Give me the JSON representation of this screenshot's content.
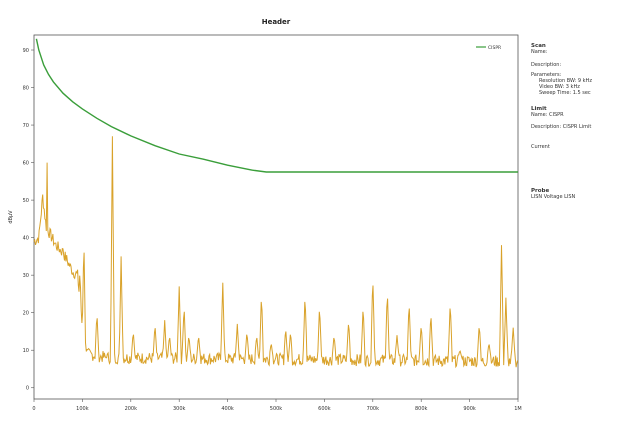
{
  "colors": {
    "limit_line": "#3a9e3a",
    "spectrum_line": "#d9a22a",
    "axis": "#555555",
    "background": "#ffffff"
  },
  "chart_data": {
    "type": "line",
    "title": "Header",
    "xlabel": "",
    "ylabel": "dBµV",
    "x_ticks": [
      0,
      100,
      200,
      300,
      400,
      500,
      600,
      700,
      800,
      900,
      1000
    ],
    "x_tick_labels": [
      "0",
      "100k",
      "200k",
      "300k",
      "400k",
      "500k",
      "600k",
      "700k",
      "800k",
      "900k",
      "1M"
    ],
    "y_ticks": [
      0,
      10,
      20,
      30,
      40,
      50,
      60,
      70,
      80,
      90
    ],
    "y_tick_labels": [
      "0",
      "10",
      "20",
      "30",
      "40",
      "50",
      "60",
      "70",
      "80",
      "90"
    ],
    "xlim": [
      0,
      1000
    ],
    "ylim": [
      -3,
      94
    ],
    "grid": false,
    "legend_position": "top-right",
    "legend": [
      "CISPR"
    ],
    "series": [
      {
        "name": "CISPR",
        "kind": "limit",
        "x": [
          5,
          10,
          20,
          30,
          40,
          60,
          80,
          100,
          130,
          160,
          200,
          250,
          300,
          350,
          400,
          450,
          480,
          500,
          600,
          700,
          800,
          900,
          1000
        ],
        "y": [
          93,
          90,
          86,
          83.5,
          81.5,
          78.5,
          76.2,
          74.3,
          71.8,
          69.6,
          67.1,
          64.5,
          62.3,
          60.9,
          59.3,
          58,
          57.5,
          57.5,
          57.5,
          57.5,
          57.5,
          57.5,
          57.5
        ]
      },
      {
        "kind": "measurement",
        "baseline": [
          [
            0,
            39
          ],
          [
            10,
            40
          ],
          [
            18,
            51
          ],
          [
            25,
            43
          ],
          [
            45,
            38
          ],
          [
            60,
            36
          ],
          [
            80,
            31
          ],
          [
            90,
            30
          ],
          [
            100,
            16
          ],
          [
            110,
            9
          ],
          [
            150,
            8
          ],
          [
            1000,
            7
          ]
        ],
        "peaks": [
          [
            2,
            27
          ],
          [
            8,
            22
          ],
          [
            14,
            31
          ],
          [
            27,
            60
          ],
          [
            40,
            33
          ],
          [
            60,
            37
          ],
          [
            79,
            15
          ],
          [
            95,
            33
          ],
          [
            103,
            40
          ],
          [
            130,
            20
          ],
          [
            150,
            8
          ],
          [
            162,
            67
          ],
          [
            180,
            35
          ],
          [
            205,
            15
          ],
          [
            250,
            17
          ],
          [
            270,
            18
          ],
          [
            280,
            14
          ],
          [
            300,
            27
          ],
          [
            310,
            22
          ],
          [
            320,
            14
          ],
          [
            340,
            14
          ],
          [
            390,
            28
          ],
          [
            420,
            17
          ],
          [
            440,
            15
          ],
          [
            460,
            14
          ],
          [
            470,
            25
          ],
          [
            490,
            12
          ],
          [
            520,
            16
          ],
          [
            530,
            15
          ],
          [
            560,
            25
          ],
          [
            590,
            22
          ],
          [
            620,
            14
          ],
          [
            650,
            18
          ],
          [
            680,
            22
          ],
          [
            700,
            30
          ],
          [
            730,
            26
          ],
          [
            750,
            14
          ],
          [
            775,
            23
          ],
          [
            800,
            17
          ],
          [
            820,
            20
          ],
          [
            860,
            23
          ],
          [
            880,
            10
          ],
          [
            920,
            17
          ],
          [
            940,
            12
          ],
          [
            966,
            38
          ],
          [
            975,
            24
          ],
          [
            990,
            16
          ]
        ]
      }
    ]
  },
  "side_panel": {
    "sections": [
      {
        "heading": "Scan",
        "lines": [
          "Name:",
          "Description:",
          "Parameters:"
        ],
        "params": [
          "Resolution BW: 9 kHz",
          "Video BW: 3 kHz",
          "Sweep Time: 1.5 sec"
        ]
      },
      {
        "heading": "Limit",
        "lines": [
          "Name: CISPR",
          "Description: CISPR Limit"
        ]
      },
      {
        "heading": "",
        "lines": [
          "Current"
        ]
      },
      {
        "heading": "Probe",
        "lines": [
          "LISN Voltage LISN"
        ]
      }
    ]
  }
}
